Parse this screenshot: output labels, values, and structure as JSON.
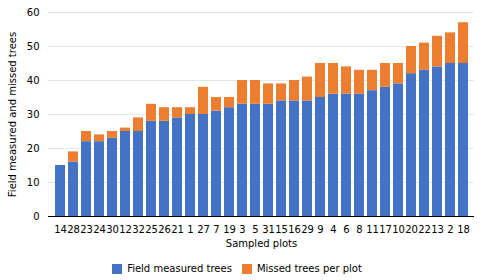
{
  "chart_data": {
    "type": "bar",
    "stacked": true,
    "categories": [
      "14",
      "28",
      "23",
      "24",
      "30",
      "12",
      "32",
      "25",
      "26",
      "21",
      "1",
      "27",
      "7",
      "19",
      "3",
      "5",
      "31",
      "15",
      "16",
      "29",
      "9",
      "4",
      "6",
      "8",
      "11",
      "17",
      "10",
      "20",
      "22",
      "13",
      "2",
      "18"
    ],
    "series": [
      {
        "name": "Field measured trees",
        "color": "#4472C4",
        "values": [
          15,
          16,
          22,
          22,
          23,
          25,
          25,
          28,
          28,
          29,
          30,
          30,
          31,
          32,
          33,
          33,
          33,
          34,
          34,
          34,
          35,
          36,
          36,
          36,
          37,
          38,
          39,
          42,
          43,
          44,
          45,
          45
        ]
      },
      {
        "name": "Missed trees per plot",
        "color": "#ED7D31",
        "values": [
          0,
          3,
          3,
          2,
          2,
          1,
          4,
          5,
          4,
          3,
          2,
          8,
          4,
          3,
          7,
          7,
          6,
          5,
          6,
          7,
          10,
          9,
          8,
          7,
          6,
          7,
          6,
          8,
          8,
          9,
          9,
          12
        ]
      }
    ],
    "xlabel": "Sampled plots",
    "ylabel": "Field measured and missed trees",
    "ylim": [
      0,
      60
    ],
    "yticks": [
      0,
      10,
      20,
      30,
      40,
      50,
      60
    ],
    "grid": true,
    "legend": "bottom"
  }
}
